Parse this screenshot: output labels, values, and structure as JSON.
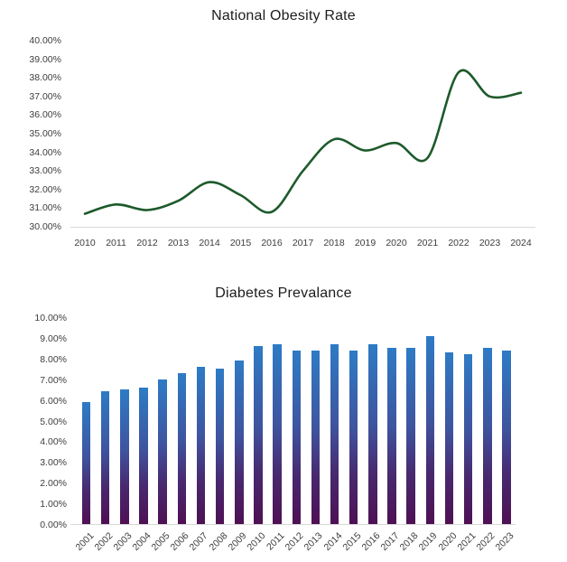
{
  "colors": {
    "background": "#ffffff",
    "title_text": "#1c1c1c",
    "axis_text": "#3d3d3d",
    "axis_line": "#d8d8d8",
    "obesity_line": "#1d5a2b",
    "diabetes_bar_gradient": [
      "#2e7bc5",
      "#3f549f",
      "#48296f",
      "#4e1053"
    ]
  },
  "chart_data": [
    {
      "type": "line",
      "title": "National Obesity Rate",
      "categories": [
        "2010",
        "2011",
        "2012",
        "2013",
        "2014",
        "2015",
        "2016",
        "2017",
        "2018",
        "2019",
        "2020",
        "2021",
        "2022",
        "2023",
        "2024"
      ],
      "values": [
        30.7,
        31.2,
        30.9,
        31.4,
        32.4,
        31.7,
        30.8,
        33.0,
        34.7,
        34.1,
        34.5,
        33.7,
        38.3,
        37.0,
        37.2
      ],
      "xlabel": "",
      "ylabel": "",
      "ylim": [
        30,
        40
      ],
      "ytick_step": 1,
      "ytick_labels": [
        "40.00%",
        "39.00%",
        "38.00%",
        "37.00%",
        "36.00%",
        "35.00%",
        "34.00%",
        "33.00%",
        "32.00%",
        "31.00%",
        "30.00%"
      ],
      "grid": "off",
      "legend": "none",
      "smooth": true,
      "line_color": "#1d5a2b"
    },
    {
      "type": "bar",
      "title": "Diabetes Prevalance",
      "categories": [
        "2001",
        "2002",
        "2003",
        "2004",
        "2005",
        "2006",
        "2007",
        "2008",
        "2009",
        "2010",
        "2011",
        "2012",
        "2013",
        "2014",
        "2015",
        "2016",
        "2017",
        "2018",
        "2019",
        "2020",
        "2021",
        "2022",
        "2023"
      ],
      "values": [
        5.9,
        6.4,
        6.5,
        6.6,
        7.0,
        7.3,
        7.6,
        7.5,
        7.9,
        8.6,
        8.7,
        8.4,
        8.4,
        8.7,
        8.4,
        8.7,
        8.5,
        8.5,
        9.1,
        8.3,
        8.2,
        8.5,
        8.4
      ],
      "xlabel": "",
      "ylabel": "",
      "ylim": [
        0,
        10
      ],
      "ytick_step": 1,
      "ytick_labels": [
        "10.00%",
        "9.00%",
        "8.00%",
        "7.00%",
        "6.00%",
        "5.00%",
        "4.00%",
        "3.00%",
        "2.00%",
        "1.00%",
        "0.00%"
      ],
      "grid": "off",
      "legend": "none",
      "xtick_rotation": -45,
      "bar_gradient": [
        "#2e7bc5",
        "#3f549f",
        "#48296f",
        "#4e1053"
      ]
    }
  ]
}
